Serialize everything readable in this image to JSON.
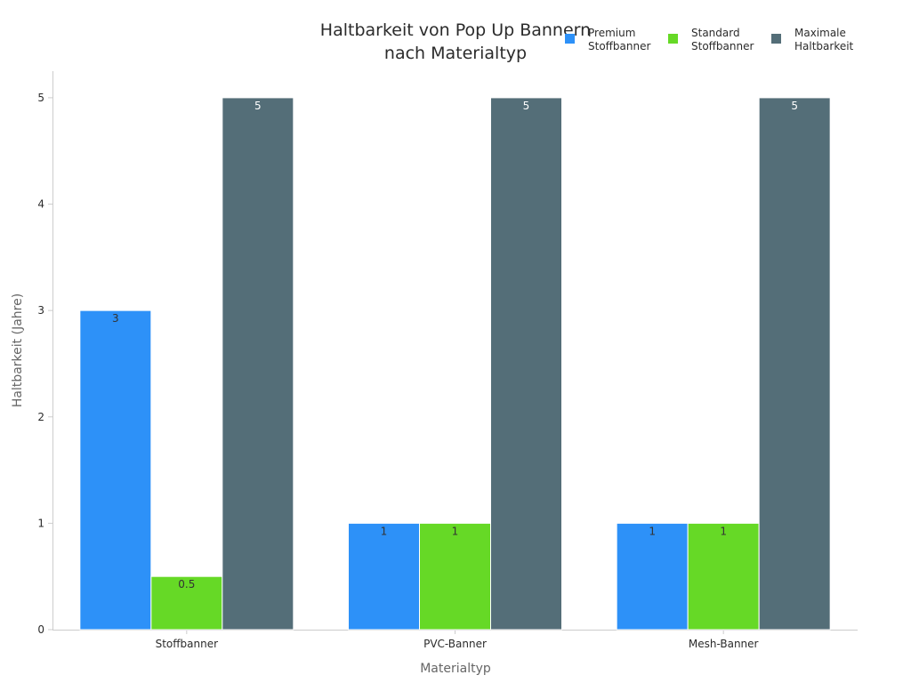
{
  "chart_data": {
    "type": "bar",
    "title_lines": [
      "Haltbarkeit von Pop Up Bannern",
      "nach Materialtyp"
    ],
    "xlabel": "Materialtyp",
    "ylabel": "Haltbarkeit (Jahre)",
    "categories": [
      "Stoffbanner",
      "PVC-Banner",
      "Mesh-Banner"
    ],
    "ylim": [
      0,
      5.25
    ],
    "yticks": [
      0,
      1,
      2,
      3,
      4,
      5
    ],
    "grid": false,
    "legend_position": "top-right",
    "series": [
      {
        "name_lines": [
          "Premium",
          "Stoffbanner"
        ],
        "values": [
          3,
          1,
          1
        ],
        "value_labels": [
          "3",
          "1",
          "1"
        ],
        "color": "#2d91f8",
        "label_color": "#333333"
      },
      {
        "name_lines": [
          "Standard",
          "Stoffbanner"
        ],
        "values": [
          0.5,
          1,
          1
        ],
        "value_labels": [
          "0.5",
          "1",
          "1"
        ],
        "color": "#66d926",
        "label_color": "#333333"
      },
      {
        "name_lines": [
          "Maximale",
          "Haltbarkeit"
        ],
        "values": [
          5,
          5,
          5
        ],
        "value_labels": [
          "5",
          "5",
          "5"
        ],
        "color": "#546e78",
        "label_color": "#ffffff"
      }
    ]
  }
}
